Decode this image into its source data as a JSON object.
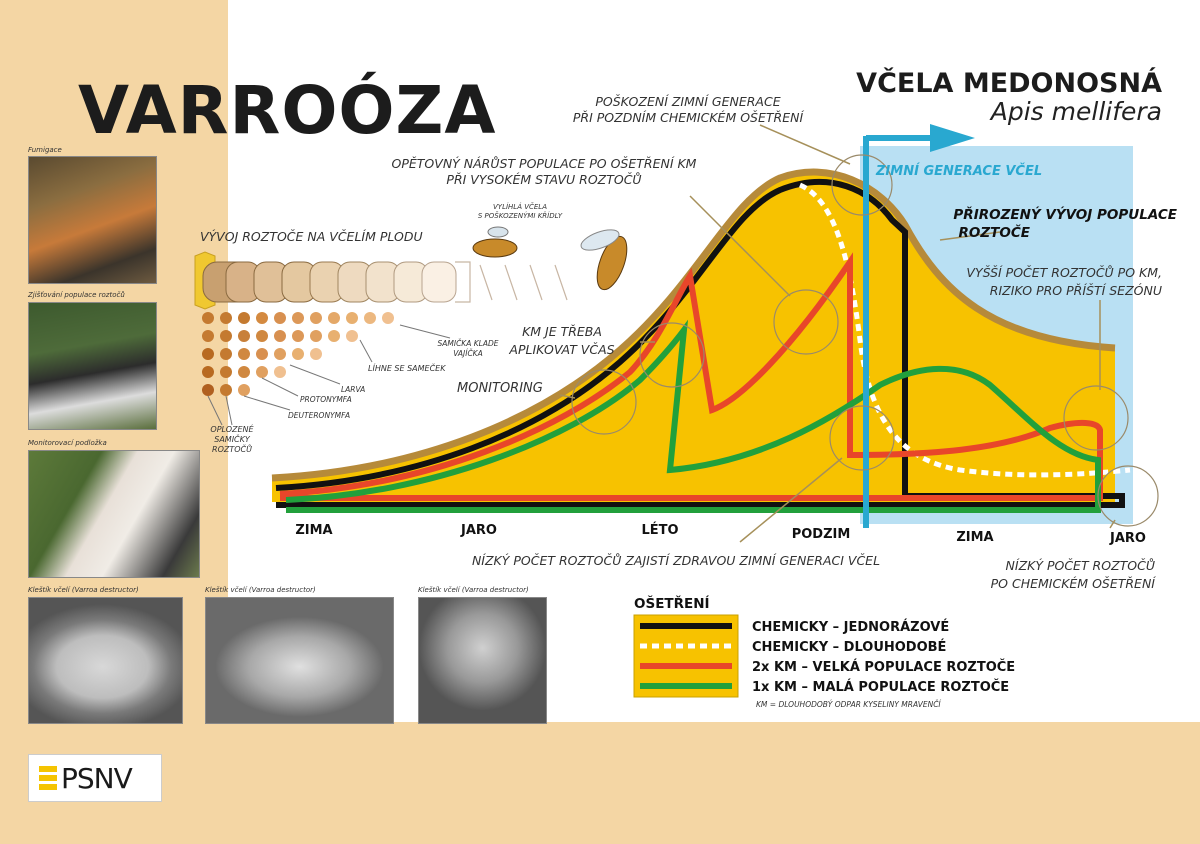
{
  "title": "VARROÓZA",
  "species": {
    "common": "VČELA MEDONOSNÁ",
    "latin": "Apis mellifera"
  },
  "photos": {
    "fumigace": "Fumigace",
    "zjistovani": "Zjišťování populace roztočů",
    "podlozka": "Monitorovací podložka",
    "klestik": "Kleštík včelí (Varroa destructor)"
  },
  "mite_dev": {
    "title": "VÝVOJ ROZTOČE NA VČELÍM PLODU",
    "damaged_bee": [
      "VYLÍHLÁ VČELA",
      "S POŠKOZENÝMI KŘÍDLY"
    ],
    "lays_eggs": [
      "SAMIČKA KLADE",
      "VAJÍČKA"
    ],
    "male": "LÍHNE SE SAMEČEK",
    "larva": "LARVA",
    "protonymph": "PROTONYMFA",
    "deutonymph": "DEUTERONYMFA",
    "fertilized": [
      "OPLOZENÉ",
      "SAMIČKY",
      "ROZTOČŮ"
    ]
  },
  "annotations": {
    "winter_damage": [
      "POŠKOZENÍ ZIMNÍ GENERACE",
      "PŘI POZDNÍM CHEMICKÉM OŠETŘENÍ"
    ],
    "regrowth": [
      "OPĚTOVNÝ NÁRŮST POPULACE PO OŠETŘENÍ KM",
      "PŘI VYSOKÉM STAVU ROZTOČŮ"
    ],
    "winter_gen": "ZIMNÍ GENERACE VČEL",
    "natural": [
      "PŘIROZENÝ VÝVOJ POPULACE",
      "ROZTOČE"
    ],
    "higher": [
      "VYŠŠÍ POČET ROZTOČŮ PO KM,",
      "RIZIKO PRO PŘÍŠTÍ SEZÓNU"
    ],
    "km_time": [
      "KM JE TŘEBA",
      "APLIKOVAT VČAS"
    ],
    "monitoring": "MONITORING",
    "low_healthy": "NÍZKÝ POČET ROZTOČŮ ZAJISTÍ ZDRAVOU ZIMNÍ GENERACI VČEL",
    "low_after": [
      "NÍZKÝ POČET ROZTOČŮ",
      "PO CHEMICKÉM OŠETŘENÍ"
    ]
  },
  "seasons": [
    "ZIMA",
    "JARO",
    "LÉTO",
    "PODZIM",
    "ZIMA",
    "JARO"
  ],
  "legend": {
    "title": "OŠETŘENÍ",
    "items": [
      {
        "label": "CHEMICKY – JEDNORÁZOVÉ",
        "color": "#111111",
        "style": "solid"
      },
      {
        "label": "CHEMICKY – DLOUHODOBÉ",
        "color": "#ffffff",
        "style": "dashed"
      },
      {
        "label": "2x KM – VELKÁ POPULACE ROZTOČE",
        "color": "#e8462a",
        "style": "solid"
      },
      {
        "label": "1x KM – MALÁ POPULACE ROZTOČE",
        "color": "#22a03c",
        "style": "solid"
      }
    ],
    "note": "KM = DLOUHODOBÝ ODPAR KYSELINY MRAVENČÍ"
  },
  "colors": {
    "fill": "#f7c200",
    "natural": "#b68a3a",
    "winter": "#29a8d0",
    "winter_bg": "#b9e0f3"
  },
  "logo": "PSNV"
}
